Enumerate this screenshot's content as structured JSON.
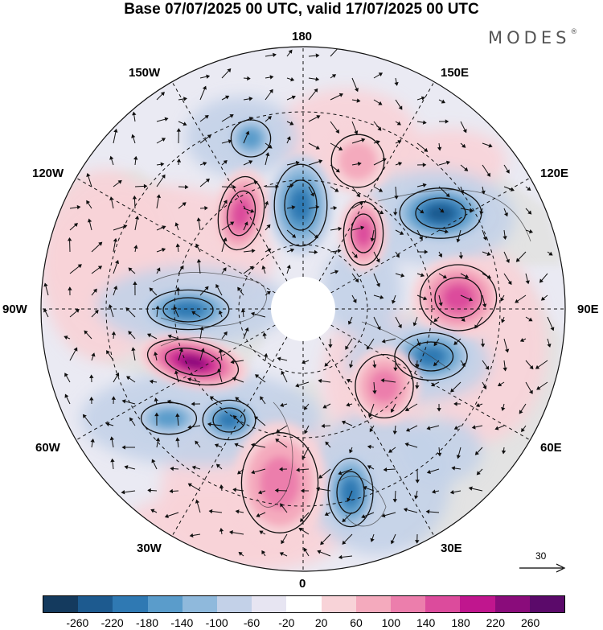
{
  "title": "Base 07/07/2025 00 UTC, valid 17/07/2025 00 UTC",
  "brand": {
    "name": "MODES",
    "mark": "®"
  },
  "longitude_labels": {
    "lon_180": "180",
    "lon_150e": "150E",
    "lon_120e": "120E",
    "lon_90e": "90E",
    "lon_60e": "60E",
    "lon_30e": "30E",
    "lon_0": "0",
    "lon_30w": "30W",
    "lon_60w": "60W",
    "lon_90w": "90W",
    "lon_120w": "120W",
    "lon_150w": "150W"
  },
  "reference_vector": {
    "label": "30"
  },
  "colorbar": {
    "labels": [
      "-260",
      "-220",
      "-180",
      "-140",
      "-100",
      "-60",
      "-20",
      "20",
      "60",
      "100",
      "140",
      "180",
      "220",
      "260"
    ],
    "colors": [
      "#143a5e",
      "#1d5a8f",
      "#2f79b3",
      "#5a9ccb",
      "#8fb9dc",
      "#c3d1e8",
      "#e7e5f2",
      "#ffffff",
      "#f8d3d8",
      "#f4aabd",
      "#ec7eac",
      "#dc4b9c",
      "#c0168e",
      "#8a0c7b",
      "#5b0a6a"
    ]
  },
  "anomaly_centers": [
    {
      "name": "anomaly-center",
      "color": "#2f79b3"
    },
    {
      "name": "anomaly-center",
      "color": "#dc4b9c"
    }
  ]
}
